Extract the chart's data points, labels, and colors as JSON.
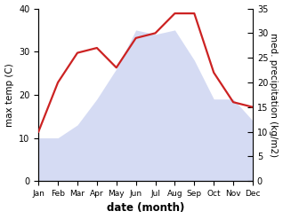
{
  "months": [
    "Jan",
    "Feb",
    "Mar",
    "Apr",
    "May",
    "Jun",
    "Jul",
    "Aug",
    "Sep",
    "Oct",
    "Nov",
    "Dec"
  ],
  "month_x": [
    1,
    2,
    3,
    4,
    5,
    6,
    7,
    8,
    9,
    10,
    11,
    12
  ],
  "temperature": [
    10,
    10,
    13,
    19,
    26,
    35,
    34,
    35,
    28,
    19,
    19,
    14
  ],
  "precipitation": [
    10,
    20,
    26,
    27,
    23,
    29,
    30,
    34,
    34,
    22,
    16,
    15
  ],
  "precip_color": "#cc2222",
  "temp_fill_color": "#c8d0f0",
  "xlabel": "date (month)",
  "ylabel_left": "max temp (C)",
  "ylabel_right": "med. precipitation (kg/m2)",
  "ylim_left": [
    0,
    40
  ],
  "ylim_right": [
    0,
    35
  ],
  "yticks_left": [
    0,
    10,
    20,
    30,
    40
  ],
  "yticks_right": [
    0,
    5,
    10,
    15,
    20,
    25,
    30,
    35
  ],
  "background_color": "#ffffff"
}
